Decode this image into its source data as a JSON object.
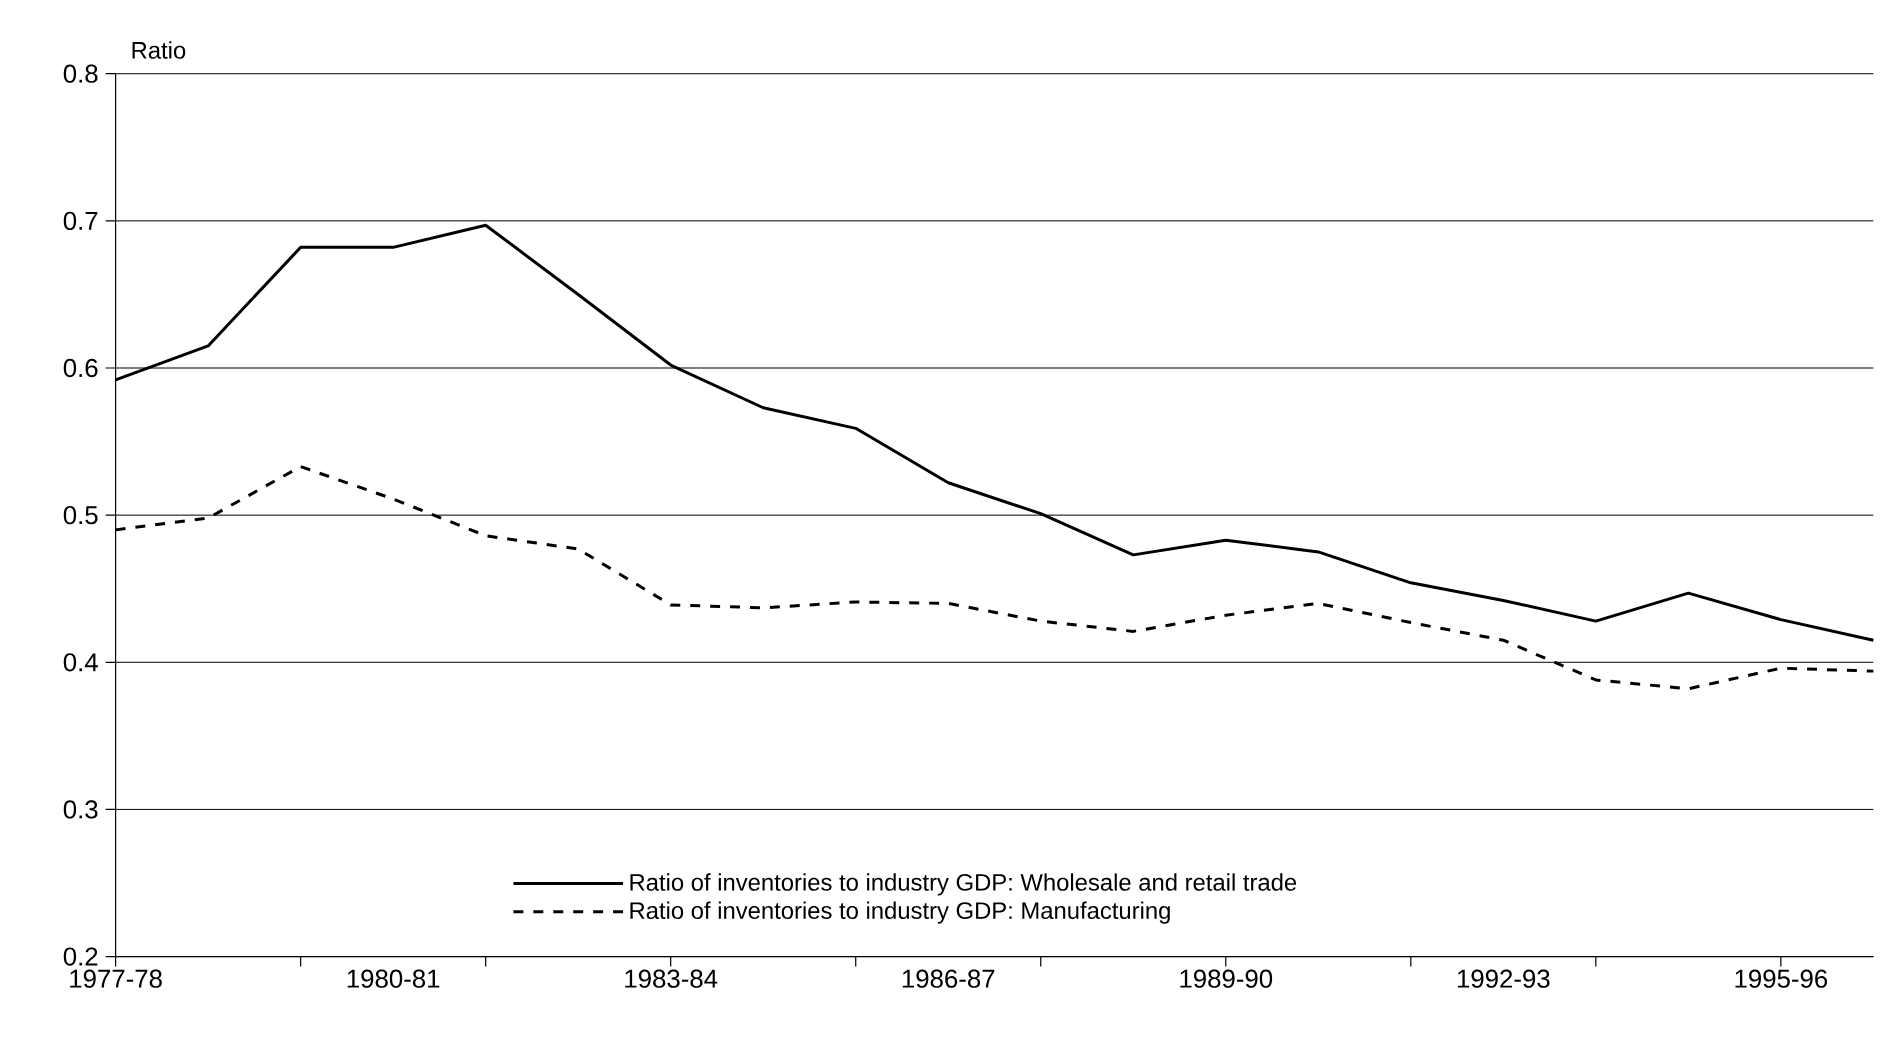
{
  "chart_data": {
    "type": "line",
    "ylabel": "Ratio",
    "categories": [
      "1977-78",
      null,
      null,
      "1980-81",
      null,
      null,
      "1983-84",
      null,
      null,
      "1986-87",
      null,
      null,
      "1989-90",
      null,
      null,
      "1992-93",
      null,
      null,
      "1995-96",
      null
    ],
    "series": [
      {
        "name": "Ratio of inventories to industry GDP: Wholesale and retail trade",
        "color": "#000000",
        "line_style": "solid",
        "values": [
          0.592,
          0.615,
          0.682,
          0.682,
          0.697,
          0.65,
          0.602,
          0.573,
          0.559,
          0.522,
          0.501,
          0.473,
          0.483,
          0.475,
          0.454,
          0.442,
          0.428,
          0.447,
          0.429,
          0.415
        ]
      },
      {
        "name": "Ratio of inventories to industry GDP: Manufacturing",
        "color": "#000000",
        "line_style": "dashed",
        "values": [
          0.49,
          0.498,
          0.533,
          0.511,
          0.486,
          0.477,
          0.439,
          0.437,
          0.441,
          0.44,
          0.428,
          0.421,
          0.432,
          0.44,
          0.427,
          0.415,
          0.388,
          0.382,
          0.396,
          0.394
        ]
      }
    ],
    "ylim": [
      0.2,
      0.8
    ],
    "yticks": [
      0.2,
      0.3,
      0.4,
      0.5,
      0.6,
      0.7,
      0.8
    ],
    "grid": "y",
    "legend": "bottom",
    "marker": "none"
  }
}
